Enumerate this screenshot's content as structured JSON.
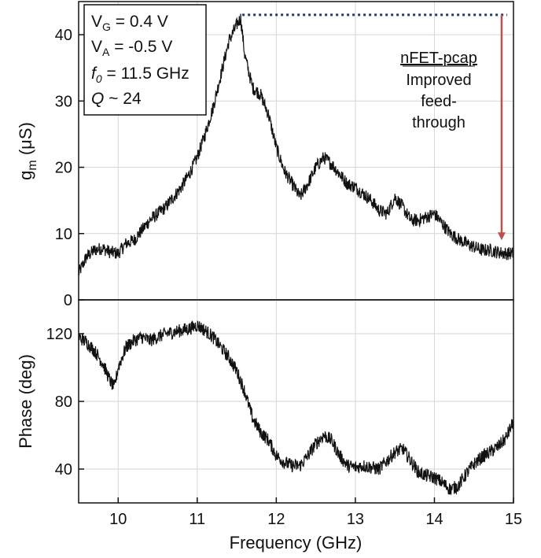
{
  "chart_data": [
    {
      "type": "line",
      "panel": "top",
      "ylabel": "g",
      "ylabel_sub": "m",
      "ylabel_unit": " (μS)",
      "xlim": [
        9.5,
        15.0
      ],
      "ylim": [
        0,
        45
      ],
      "yticks": [
        0,
        10,
        20,
        30,
        40
      ],
      "grid": true,
      "line_color": "#111111",
      "x": [
        9.5,
        9.6,
        9.7,
        9.8,
        9.9,
        10.0,
        10.1,
        10.2,
        10.3,
        10.4,
        10.5,
        10.6,
        10.7,
        10.8,
        10.9,
        11.0,
        11.1,
        11.2,
        11.3,
        11.4,
        11.5,
        11.55,
        11.6,
        11.7,
        11.8,
        11.9,
        12.0,
        12.1,
        12.2,
        12.3,
        12.4,
        12.5,
        12.6,
        12.7,
        12.8,
        12.9,
        13.0,
        13.1,
        13.2,
        13.3,
        13.4,
        13.5,
        13.6,
        13.7,
        13.8,
        13.9,
        14.0,
        14.1,
        14.2,
        14.3,
        14.4,
        14.5,
        14.6,
        14.7,
        14.8,
        14.9,
        15.0
      ],
      "y": [
        4,
        6.5,
        7.5,
        7.8,
        7.2,
        7,
        8.5,
        9,
        10.5,
        12,
        13,
        14,
        15.5,
        17,
        19,
        21.5,
        25,
        29,
        34,
        39,
        41.5,
        42.5,
        37,
        32,
        31,
        28,
        23,
        19.5,
        17.5,
        15.5,
        17.5,
        20,
        21.5,
        20.5,
        19,
        17.5,
        17,
        16,
        15,
        13.5,
        13,
        15.5,
        14,
        12,
        12,
        12.5,
        13,
        11.5,
        10,
        9.2,
        8.5,
        8,
        7.5,
        7.5,
        7.2,
        7,
        7
      ]
    },
    {
      "type": "line",
      "panel": "bottom",
      "xlabel": "Frequency (GHz)",
      "ylabel": "Phase (deg)",
      "xlim": [
        9.5,
        15.0
      ],
      "ylim": [
        20,
        140
      ],
      "xticks": [
        10,
        11,
        12,
        13,
        14,
        15
      ],
      "yticks": [
        40,
        80,
        120
      ],
      "grid": true,
      "line_color": "#111111",
      "x": [
        9.5,
        9.6,
        9.7,
        9.8,
        9.9,
        9.95,
        10.0,
        10.1,
        10.2,
        10.3,
        10.4,
        10.5,
        10.6,
        10.7,
        10.8,
        10.9,
        11.0,
        11.1,
        11.2,
        11.3,
        11.4,
        11.5,
        11.6,
        11.7,
        11.8,
        11.9,
        12.0,
        12.1,
        12.2,
        12.3,
        12.4,
        12.5,
        12.6,
        12.7,
        12.8,
        12.9,
        13.0,
        13.1,
        13.2,
        13.3,
        13.4,
        13.5,
        13.6,
        13.7,
        13.8,
        13.9,
        14.0,
        14.1,
        14.2,
        14.3,
        14.4,
        14.5,
        14.6,
        14.7,
        14.8,
        14.9,
        15.0
      ],
      "y": [
        118,
        115,
        110,
        103,
        92,
        88,
        100,
        112,
        116,
        118,
        116,
        118,
        120,
        121,
        122,
        123,
        125,
        122,
        118,
        112,
        106,
        98,
        86,
        70,
        62,
        57,
        48,
        44,
        42,
        42,
        48,
        55,
        60,
        57,
        48,
        42,
        41,
        42,
        41,
        40,
        45,
        50,
        52,
        45,
        38,
        36,
        35,
        32,
        28,
        30,
        37,
        43,
        47,
        50,
        53,
        58,
        68
      ]
    }
  ],
  "annotation_box": {
    "line1_main": "V",
    "line1_sub": "G",
    "line1_rest": " = 0.4 V",
    "line2_main": "V",
    "line2_sub": "A",
    "line2_rest": " = -0.5 V",
    "line3_main": "f",
    "line3_sub": "0",
    "line3_rest": " = 11.5 GHz",
    "line4_main": "Q",
    "line4_rest": " ~ 24"
  },
  "feedthrough_note": {
    "title": "nFET-pcap",
    "line1": "Improved",
    "line2": "feed-",
    "line3": "through",
    "dotted_level_uS": 43,
    "arrow_x_GHz": 14.85,
    "arrow_end_uS": 9,
    "dotted_color": "#1f3a6d",
    "arrow_color": "#c0504d"
  }
}
